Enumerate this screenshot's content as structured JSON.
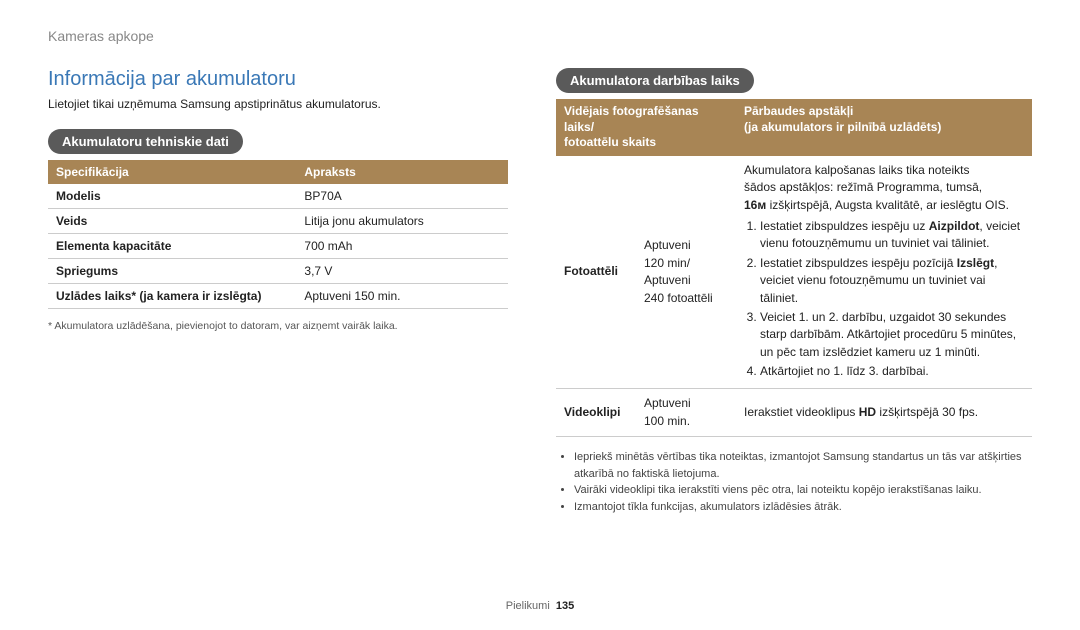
{
  "breadcrumb": "Kameras apkope",
  "heading": "Informācija par akumulatoru",
  "intro": "Lietojiet tikai uzņēmuma Samsung apstiprinātus akumulatorus.",
  "spec_section": {
    "title": "Akumulatoru tehniskie dati",
    "header_col1": "Specifikācija",
    "header_col2": "Apraksts",
    "rows": [
      {
        "label": "Modelis",
        "value": "BP70A"
      },
      {
        "label": "Veids",
        "value": "Litija jonu akumulators"
      },
      {
        "label": "Elementa kapacitāte",
        "value": "700 mAh"
      },
      {
        "label": "Spriegums",
        "value": "3,7 V"
      },
      {
        "label": "Uzlādes laiks* (ja kamera ir izslēgta)",
        "value": "Aptuveni 150 min."
      }
    ],
    "footnote": "* Akumulatora uzlādēšana, pievienojot to datoram, var aizņemt vairāk laika."
  },
  "op_section": {
    "title": "Akumulatora darbības laiks",
    "header_col1_line1": "Vidējais fotografēšanas laiks/",
    "header_col1_line2": "fotoattēlu skaits",
    "header_col2_line1": "Pārbaudes apstākļi",
    "header_col2_line2": "(ja akumulators ir pilnībā uzlādēts)",
    "photo": {
      "label": "Fotoattēli",
      "time_l1": "Aptuveni",
      "time_l2": "120 min/",
      "time_l3": "Aptuveni",
      "time_l4": "240 fotoattēli",
      "cond_intro1": "Akumulatora kalpošanas laiks tika noteikts",
      "cond_intro2": "šādos apstākļos: režīmā Programma, tumsā,",
      "cond_intro3": " izšķirtspējā, Augsta kvalitātē, ar ieslēgtu OIS.",
      "step1a": "Iestatiet zibspuldzes iespēju uz ",
      "step1b": "Aizpildot",
      "step1c": ", veiciet vienu fotouzņēmumu un tuviniet vai tāliniet.",
      "step2a": "Iestatiet zibspuldzes iespēju pozīcijā ",
      "step2b": "Izslēgt",
      "step2c": ", veiciet vienu fotouzņēmumu un tuviniet vai tāliniet.",
      "step3": "Veiciet 1. un 2. darbību, uzgaidot 30 sekundes starp darbībām. Atkārtojiet procedūru 5 minūtes, un pēc tam izslēdziet kameru uz 1 minūti.",
      "step4": "Atkārtojiet no 1. līdz 3. darbībai."
    },
    "video": {
      "label": "Videoklipi",
      "time_l1": "Aptuveni",
      "time_l2": "100 min.",
      "cond_a": "Ierakstiet videoklipus ",
      "cond_b": " izšķirtspējā 30 fps."
    },
    "notes": [
      "Iepriekš minētās vērtības tika noteiktas, izmantojot Samsung standartus un tās var atšķirties atkarībā no faktiskā lietojuma.",
      "Vairāki videoklipi tika ierakstīti viens pēc otra, lai noteiktu kopējo ierakstīšanas laiku.",
      "Izmantojot tīkla funkcijas, akumulators izlādēsies ātrāk."
    ]
  },
  "footer_label": "Pielikumi",
  "footer_page": "135",
  "icons": {
    "m_res": "16ᴍ",
    "hd": "HD"
  },
  "colors": {
    "heading": "#3a78b6",
    "pill_bg": "#5a5a5a",
    "pill_fg": "#ffffff",
    "th_bg": "#a88555",
    "th_fg": "#ffffff",
    "border": "#cccccc",
    "breadcrumb": "#888888"
  }
}
